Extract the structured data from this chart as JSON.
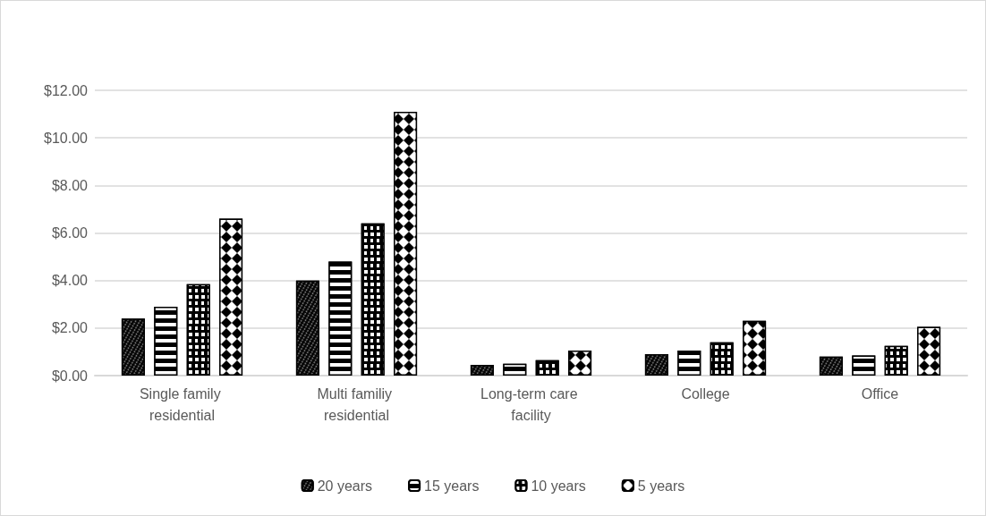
{
  "chart_data": {
    "type": "bar",
    "categories": [
      "Single family residential",
      "Multi familiy residential",
      "Long-term care facility",
      "College",
      "Office"
    ],
    "series": [
      {
        "name": "20 years",
        "color": "#000000",
        "values": [
          2.4,
          4.0,
          0.45,
          0.9,
          0.8
        ]
      },
      {
        "name": "15 years",
        "color": "#000000",
        "values": [
          2.9,
          4.8,
          0.5,
          1.05,
          0.85
        ]
      },
      {
        "name": "10 years",
        "color": "#000000",
        "values": [
          3.85,
          6.4,
          0.65,
          1.4,
          1.25
        ]
      },
      {
        "name": "5 years",
        "color": "#000000",
        "values": [
          6.6,
          11.1,
          1.05,
          2.3,
          2.05
        ]
      }
    ],
    "ylim": [
      0,
      12
    ],
    "yticks": [
      {
        "value": 0,
        "label": "$0.00"
      },
      {
        "value": 2,
        "label": "$2.00"
      },
      {
        "value": 4,
        "label": "$4.00"
      },
      {
        "value": 6,
        "label": "$6.00"
      },
      {
        "value": 8,
        "label": "$8.00"
      },
      {
        "value": 10,
        "label": "$10.00"
      },
      {
        "value": 12,
        "label": "$12.00"
      }
    ],
    "grid": "y",
    "legend": "bottom"
  }
}
